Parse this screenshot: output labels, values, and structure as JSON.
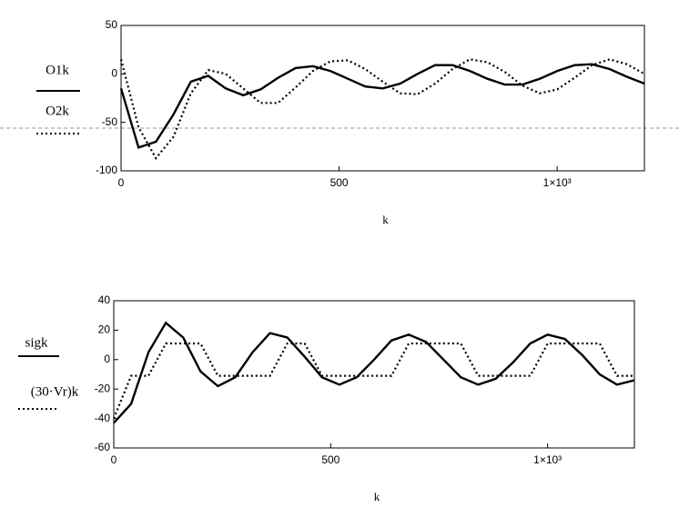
{
  "chart_data": [
    {
      "type": "line",
      "x_label": "k",
      "x": [
        0,
        40,
        80,
        120,
        160,
        200,
        240,
        280,
        320,
        360,
        400,
        440,
        480,
        520,
        560,
        600,
        640,
        680,
        720,
        760,
        800,
        840,
        880,
        920,
        960,
        1000,
        1040,
        1080,
        1120,
        1160,
        1200
      ],
      "series": [
        {
          "name": "O1k",
          "color": "#000000",
          "style": "solid",
          "values": [
            -15,
            -76,
            -70,
            -42,
            -8,
            -2,
            -15,
            -22,
            -16,
            -4,
            6,
            8,
            3,
            -5,
            -13,
            -15,
            -10,
            0,
            9,
            9,
            3,
            -5,
            -11,
            -11,
            -5,
            3,
            9,
            10,
            5,
            -3,
            -10
          ]
        },
        {
          "name": "O2k",
          "color": "#000000",
          "style": "dotted",
          "values": [
            15,
            -55,
            -87,
            -65,
            -20,
            4,
            0,
            -15,
            -30,
            -30,
            -14,
            3,
            13,
            14,
            5,
            -8,
            -20,
            -21,
            -10,
            5,
            15,
            12,
            2,
            -12,
            -20,
            -16,
            -4,
            9,
            15,
            10,
            0
          ]
        }
      ],
      "xlim": [
        0,
        1200
      ],
      "xticks": [
        0,
        500,
        {
          "value": 1000,
          "label": "1×10³"
        }
      ],
      "ylim": [
        -100,
        50
      ],
      "yticks": [
        -100,
        -50,
        0,
        50
      ],
      "grid": false
    },
    {
      "type": "line",
      "x_label": "k",
      "x": [
        0,
        40,
        80,
        120,
        160,
        200,
        240,
        280,
        320,
        360,
        400,
        440,
        480,
        520,
        560,
        600,
        640,
        680,
        720,
        760,
        800,
        840,
        880,
        920,
        960,
        1000,
        1040,
        1080,
        1120,
        1160,
        1200
      ],
      "series": [
        {
          "name": "sigk",
          "color": "#000000",
          "style": "solid",
          "values": [
            -43,
            -30,
            5,
            25,
            15,
            -8,
            -18,
            -12,
            5,
            18,
            15,
            2,
            -12,
            -17,
            -12,
            0,
            13,
            17,
            12,
            0,
            -12,
            -17,
            -13,
            -2,
            11,
            17,
            14,
            3,
            -10,
            -17,
            -14
          ]
        },
        {
          "name": "(30·Vr)k",
          "color": "#000000",
          "style": "dotted",
          "values": [
            -40,
            -11,
            -11,
            11,
            11,
            11,
            -11,
            -11,
            -11,
            -11,
            11,
            11,
            -11,
            -11,
            -11,
            -11,
            -11,
            11,
            11,
            11,
            11,
            -11,
            -11,
            -11,
            -11,
            11,
            11,
            11,
            11,
            -11,
            -11
          ]
        }
      ],
      "xlim": [
        0,
        1200
      ],
      "xticks": [
        0,
        500,
        {
          "value": 1000,
          "label": "1×10³"
        }
      ],
      "ylim": [
        -60,
        40
      ],
      "yticks": [
        -60,
        -40,
        -20,
        0,
        20,
        40
      ],
      "grid": false
    }
  ]
}
